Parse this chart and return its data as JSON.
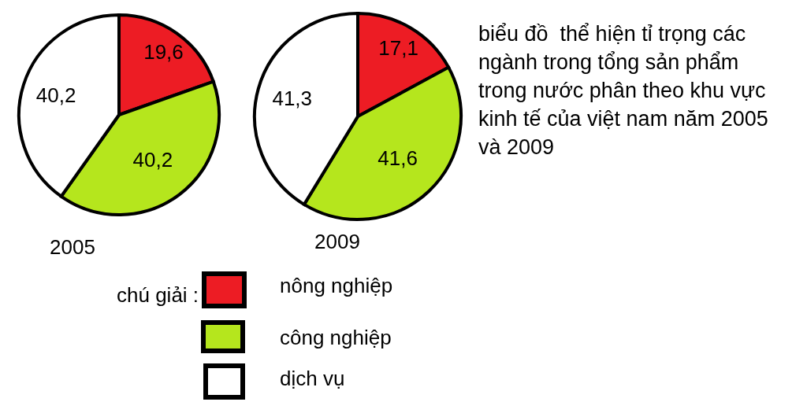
{
  "chart_data": [
    {
      "type": "pie",
      "title": "2005",
      "categories": [
        "nông nghiệp",
        "công nghiệp",
        "dịch vụ"
      ],
      "values": [
        19.6,
        40.2,
        40.2
      ],
      "value_labels": [
        "19,6",
        "40,2",
        "40,2"
      ],
      "colors": [
        "#ed1c24",
        "#b5e61d",
        "#ffffff"
      ],
      "legend": "bottom",
      "legend_title": "chú giải :"
    },
    {
      "type": "pie",
      "title": "2009",
      "categories": [
        null,
        null,
        null
      ],
      "values": [
        17.1,
        41.6,
        41.3
      ],
      "value_labels": [
        "17,1",
        "41,6",
        "41,3"
      ],
      "colors": [
        "#ed1c24",
        "#b5e61d",
        "#ffffff"
      ]
    },
    {
      "type": "other",
      "title": "biểu đồ  thể hiện tỉ trọng các ngành trong tổng sản phẩm trong nước phân theo khu vực kinh tế của việt nam năm 2005 và 2009"
    }
  ]
}
